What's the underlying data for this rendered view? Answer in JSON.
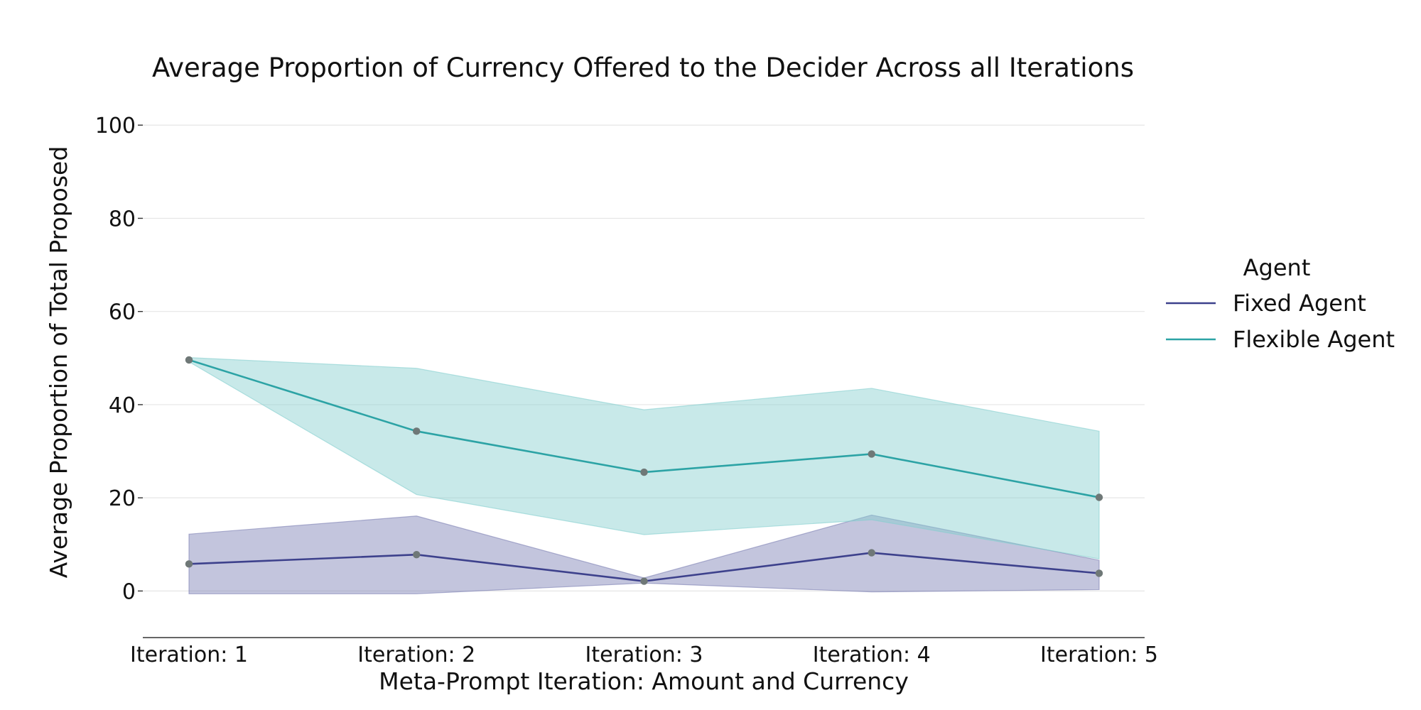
{
  "chart_data": {
    "type": "line",
    "title": "Average Proportion of Currency Offered to the Decider Across all Iterations",
    "xlabel": "Meta-Prompt Iteration: Amount and Currency",
    "ylabel": "Average Proportion of Total Proposed",
    "categories": [
      "Iteration: 1",
      "Iteration: 2",
      "Iteration: 3",
      "Iteration: 4",
      "Iteration: 5"
    ],
    "ylim": [
      -10,
      104
    ],
    "yticks": [
      0,
      20,
      40,
      60,
      80,
      100
    ],
    "grid": "horizontal",
    "legend": {
      "title": "Agent",
      "placement": "right"
    },
    "series": [
      {
        "name": "Fixed Agent",
        "color": "#3d418c",
        "band_color": "#7b7eb3",
        "values": [
          5.8,
          7.8,
          2.1,
          8.2,
          3.8
        ],
        "ci_lower": [
          -0.6,
          -0.6,
          1.7,
          -0.2,
          0.3
        ],
        "ci_upper": [
          12.2,
          16.1,
          2.8,
          16.3,
          6.6
        ]
      },
      {
        "name": "Flexible Agent",
        "color": "#2ca3a5",
        "band_color": "#84cfcf",
        "values": [
          49.6,
          34.3,
          25.5,
          29.4,
          20.1
        ],
        "ci_lower": [
          49.2,
          20.7,
          12.1,
          15.3,
          6.9
        ],
        "ci_upper": [
          50.1,
          47.8,
          38.9,
          43.5,
          34.3
        ]
      }
    ],
    "marker_color": "#6f7877"
  }
}
